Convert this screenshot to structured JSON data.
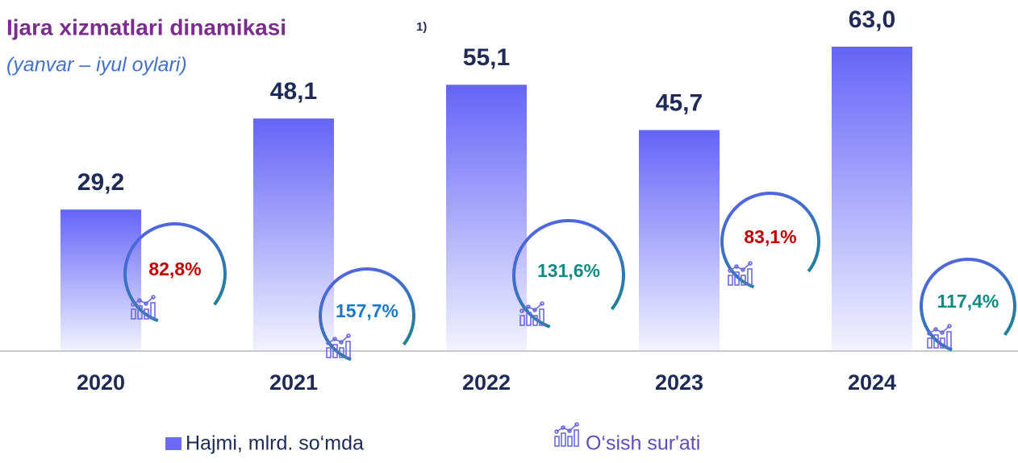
{
  "chart_data": {
    "type": "bar",
    "title": "Ijara xizmatlari dinamikasi",
    "title_note": "1)",
    "subtitle": "(yanvar – iyul  oylari)",
    "categories": [
      "2020",
      "2021",
      "2022",
      "2023",
      "2024"
    ],
    "series": [
      {
        "name": "Hajmi, mlrd. so‘mda",
        "color": "#6464f8",
        "values": [
          29.2,
          48.1,
          55.1,
          45.7,
          63.0
        ],
        "value_labels": [
          "29,2",
          "48,1",
          "55,1",
          "45,7",
          "63,0"
        ]
      },
      {
        "name": "O‘sish sur'ati",
        "values": [
          82.8,
          157.7,
          131.6,
          83.1,
          117.4
        ],
        "value_labels": [
          "82,8%",
          "157,7%",
          "131,6%",
          "83,1%",
          "117,4%"
        ],
        "colors": [
          "#c00000",
          "#1a7ac4",
          "#138a84",
          "#c00000",
          "#138a84"
        ]
      }
    ]
  }
}
